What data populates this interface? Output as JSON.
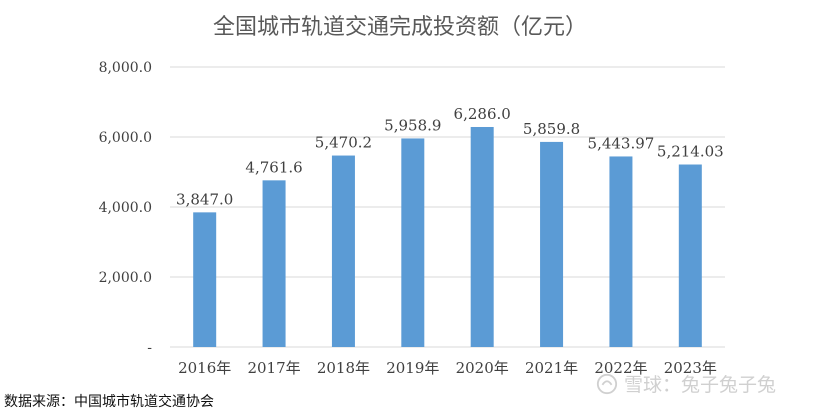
{
  "chart_data": {
    "type": "bar",
    "title": "全国城市轨道交通完成投资额（亿元）",
    "categories": [
      "2016年",
      "2017年",
      "2018年",
      "2019年",
      "2020年",
      "2021年",
      "2022年",
      "2023年"
    ],
    "values": [
      3847.0,
      4761.6,
      5470.2,
      5958.9,
      6286.0,
      5859.8,
      5443.97,
      5214.03
    ],
    "value_labels": [
      "3,847.0",
      "4,761.6",
      "5,470.2",
      "5,958.9",
      "6,286.0",
      "5,859.8",
      "5,443.97",
      "5,214.03"
    ],
    "yticks": [
      0,
      2000,
      4000,
      6000,
      8000
    ],
    "ytick_labels": [
      "-",
      "2,000.0",
      "4,000.0",
      "6,000.0",
      "8,000.0"
    ],
    "ylim": [
      0,
      8000
    ],
    "xlabel": "",
    "ylabel": "",
    "grid": true,
    "bar_color": "#5b9bd5"
  },
  "source_text": "数据来源：中国城市轨道交通协会",
  "watermark_text": "雪球：兔子兔子兔"
}
